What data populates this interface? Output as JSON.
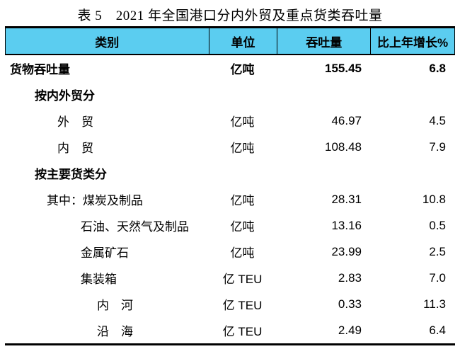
{
  "title": "表 5　2021 年全国港口分内外贸及重点货类吞吐量",
  "colors": {
    "header_bg": "#5bcdf0",
    "border": "#000000",
    "text": "#000000"
  },
  "table": {
    "headers": [
      "类别",
      "单位",
      "吞吐量",
      "比上年增长%"
    ],
    "rows": [
      {
        "label": "货物吞吐量",
        "unit": "亿吨",
        "value": "155.45",
        "growth": "6.8"
      },
      {
        "label": "按内外贸分",
        "unit": "",
        "value": "",
        "growth": ""
      },
      {
        "label": "外　贸",
        "unit": "亿吨",
        "value": "46.97",
        "growth": "4.5"
      },
      {
        "label": "内　贸",
        "unit": "亿吨",
        "value": "108.48",
        "growth": "7.9"
      },
      {
        "label": "按主要货类分",
        "unit": "",
        "value": "",
        "growth": ""
      },
      {
        "label": "其中：煤炭及制品",
        "unit": "亿吨",
        "value": "28.31",
        "growth": "10.8"
      },
      {
        "label": "石油、天然气及制品",
        "unit": "亿吨",
        "value": "13.16",
        "growth": "0.5"
      },
      {
        "label": "金属矿石",
        "unit": "亿吨",
        "value": "23.99",
        "growth": "2.5"
      },
      {
        "label": "集装箱",
        "unit": "亿 TEU",
        "value": "2.83",
        "growth": "7.0"
      },
      {
        "label": "内　河",
        "unit": "亿 TEU",
        "value": "0.33",
        "growth": "11.3"
      },
      {
        "label": "沿　海",
        "unit": "亿 TEU",
        "value": "2.49",
        "growth": "6.4"
      }
    ]
  }
}
